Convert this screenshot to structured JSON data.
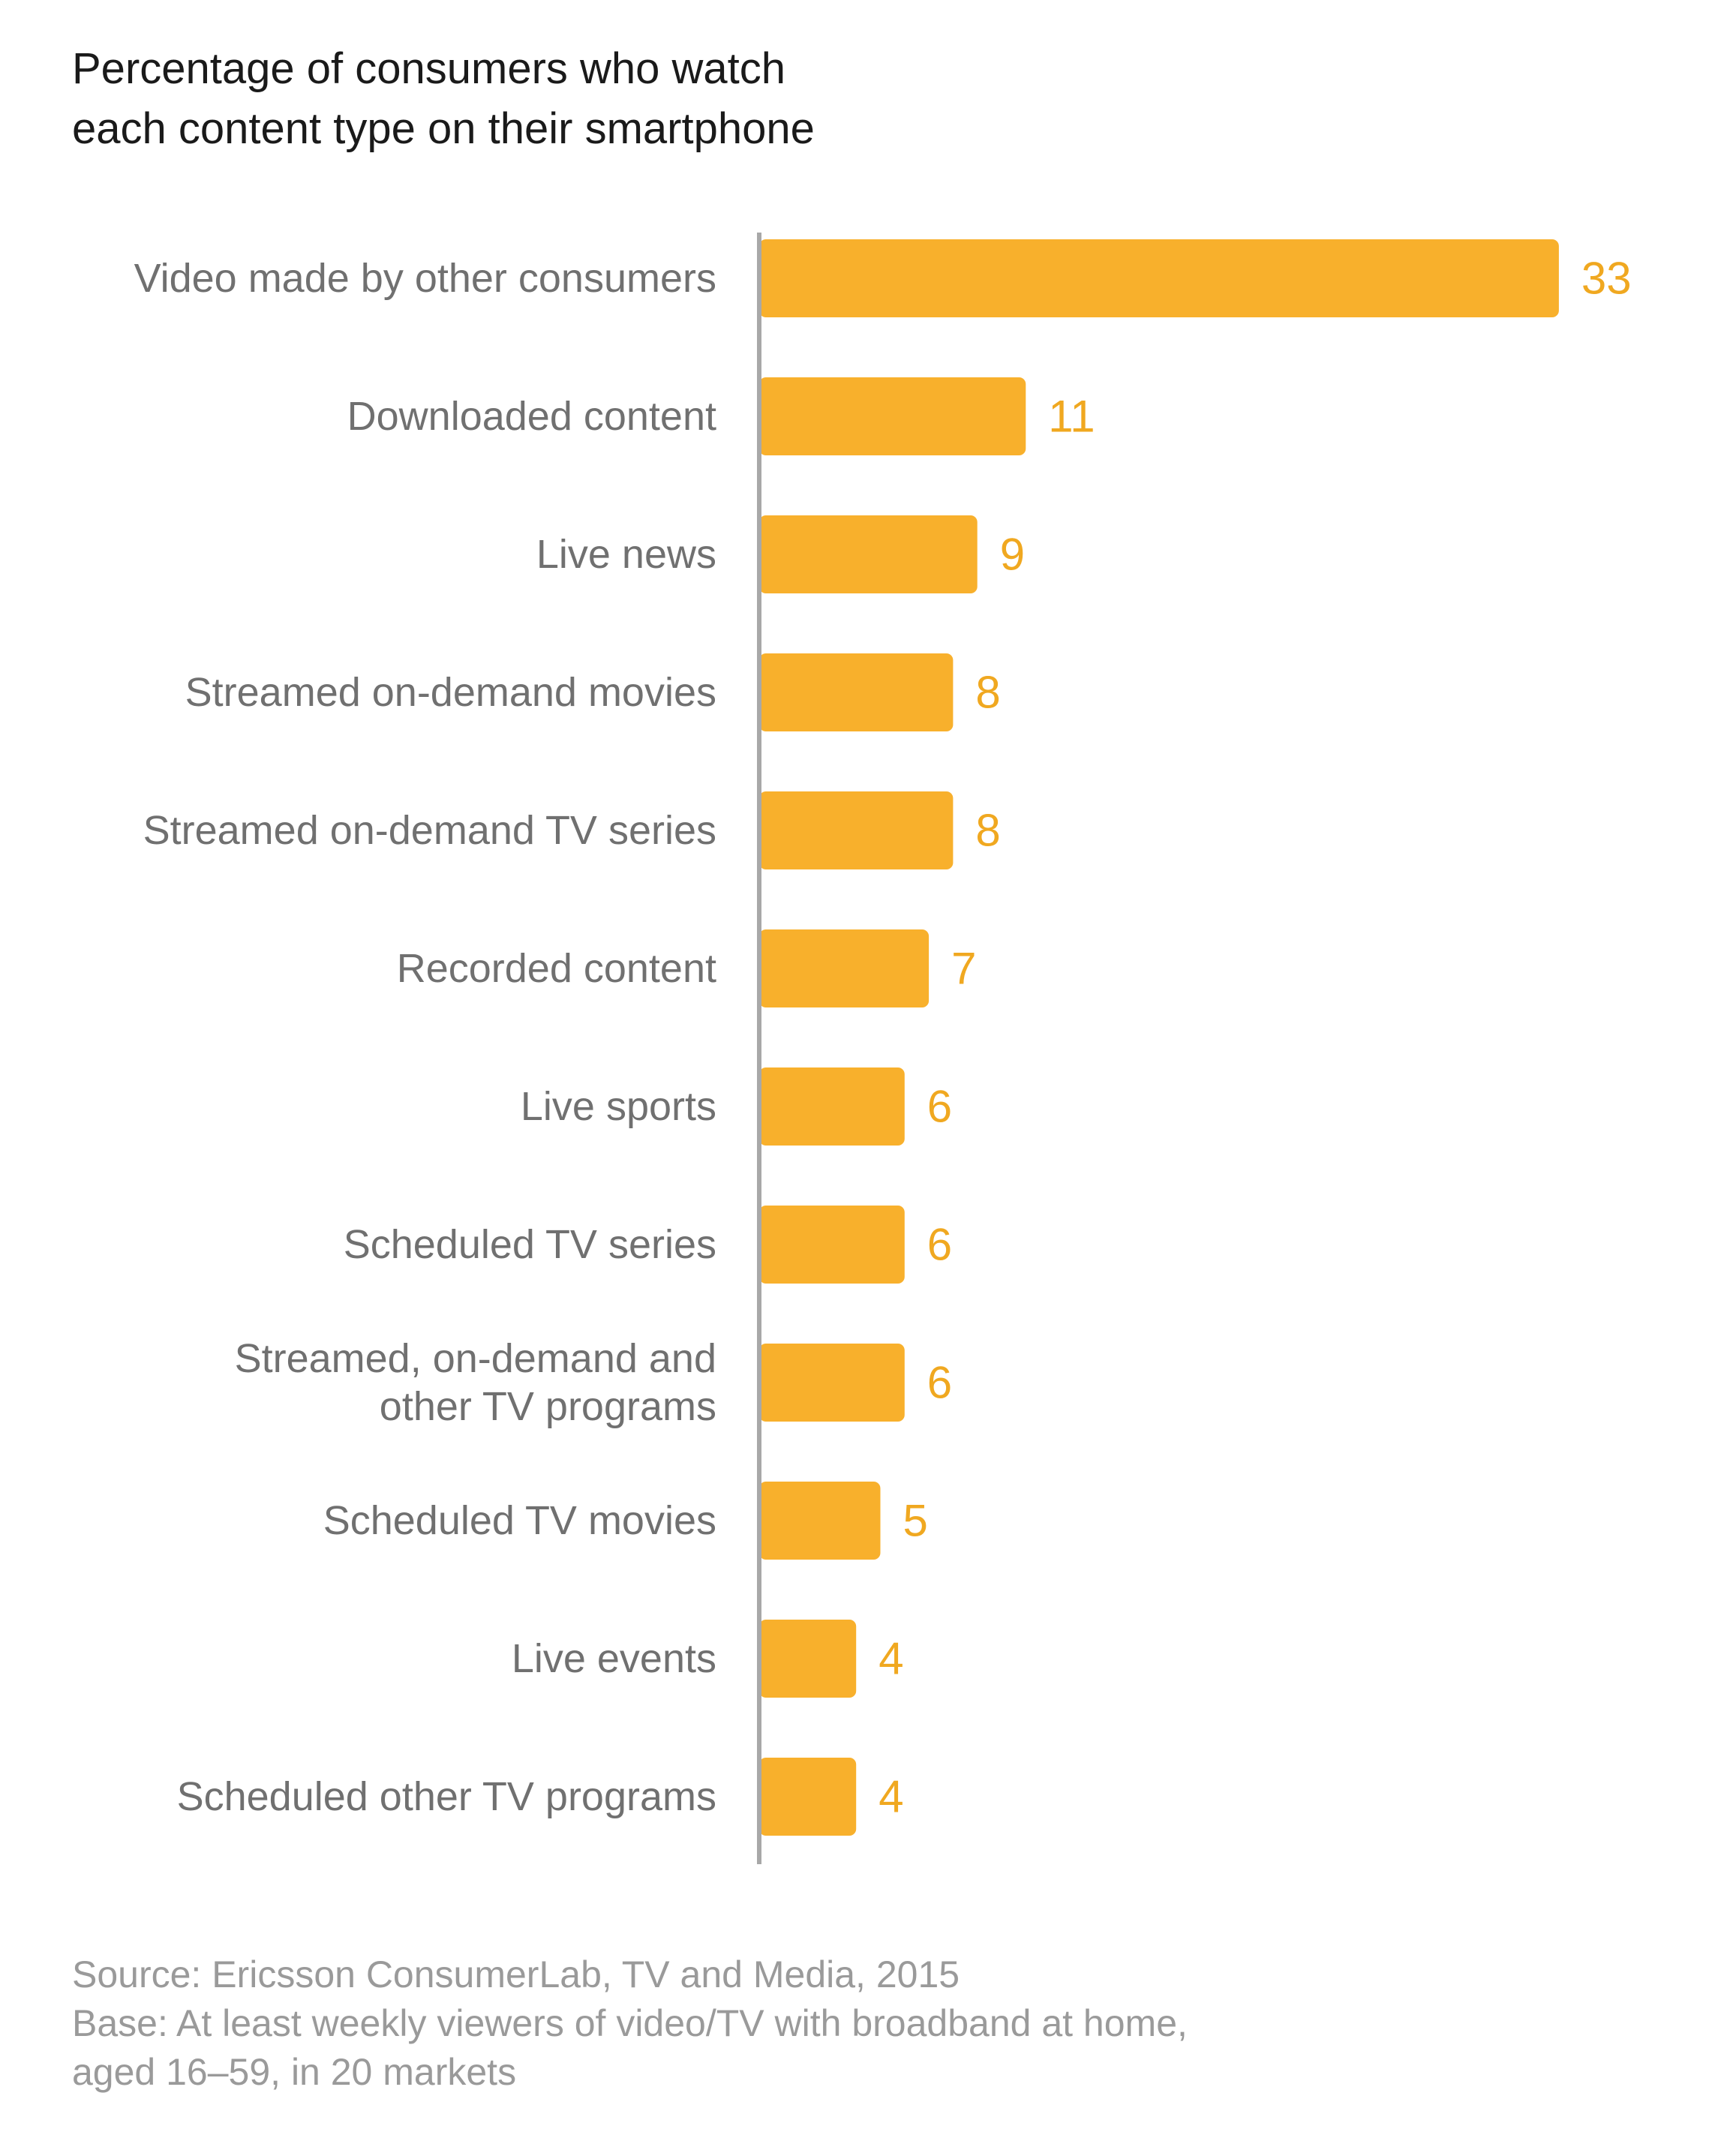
{
  "title": {
    "line1": "Percentage of consumers who watch",
    "line2": "each content type on their smartphone"
  },
  "colors": {
    "bar": "#f8b02c",
    "value_label": "#f0a820",
    "category_label": "#707070",
    "axis": "#a8a8a8"
  },
  "chart_data": {
    "type": "bar",
    "orientation": "horizontal",
    "title": "Percentage of consumers who watch each content type on their smartphone",
    "xlabel": "",
    "ylabel": "",
    "grid": false,
    "categories": [
      [
        "Video made by other consumers"
      ],
      [
        "Downloaded content"
      ],
      [
        "Live news"
      ],
      [
        "Streamed on-demand movies"
      ],
      [
        "Streamed on-demand TV series"
      ],
      [
        "Recorded content"
      ],
      [
        "Live sports"
      ],
      [
        "Scheduled TV series"
      ],
      [
        "Streamed, on-demand and",
        "other TV programs"
      ],
      [
        "Scheduled TV movies"
      ],
      [
        "Live events"
      ],
      [
        "Scheduled other TV programs"
      ]
    ],
    "values": [
      33,
      11,
      9,
      8,
      8,
      7,
      6,
      6,
      6,
      5,
      4,
      4
    ],
    "value_labels": [
      "33",
      "11",
      "9",
      "8",
      "8",
      "7",
      "6",
      "6",
      "6",
      "5",
      "4",
      "4"
    ]
  },
  "footer": {
    "source": "Source: Ericsson ConsumerLab, TV and Media, 2015",
    "base_line1": "Base: At least weekly viewers of video/TV with broadband at home,",
    "base_line2": "aged 16–59, in 20 markets"
  }
}
